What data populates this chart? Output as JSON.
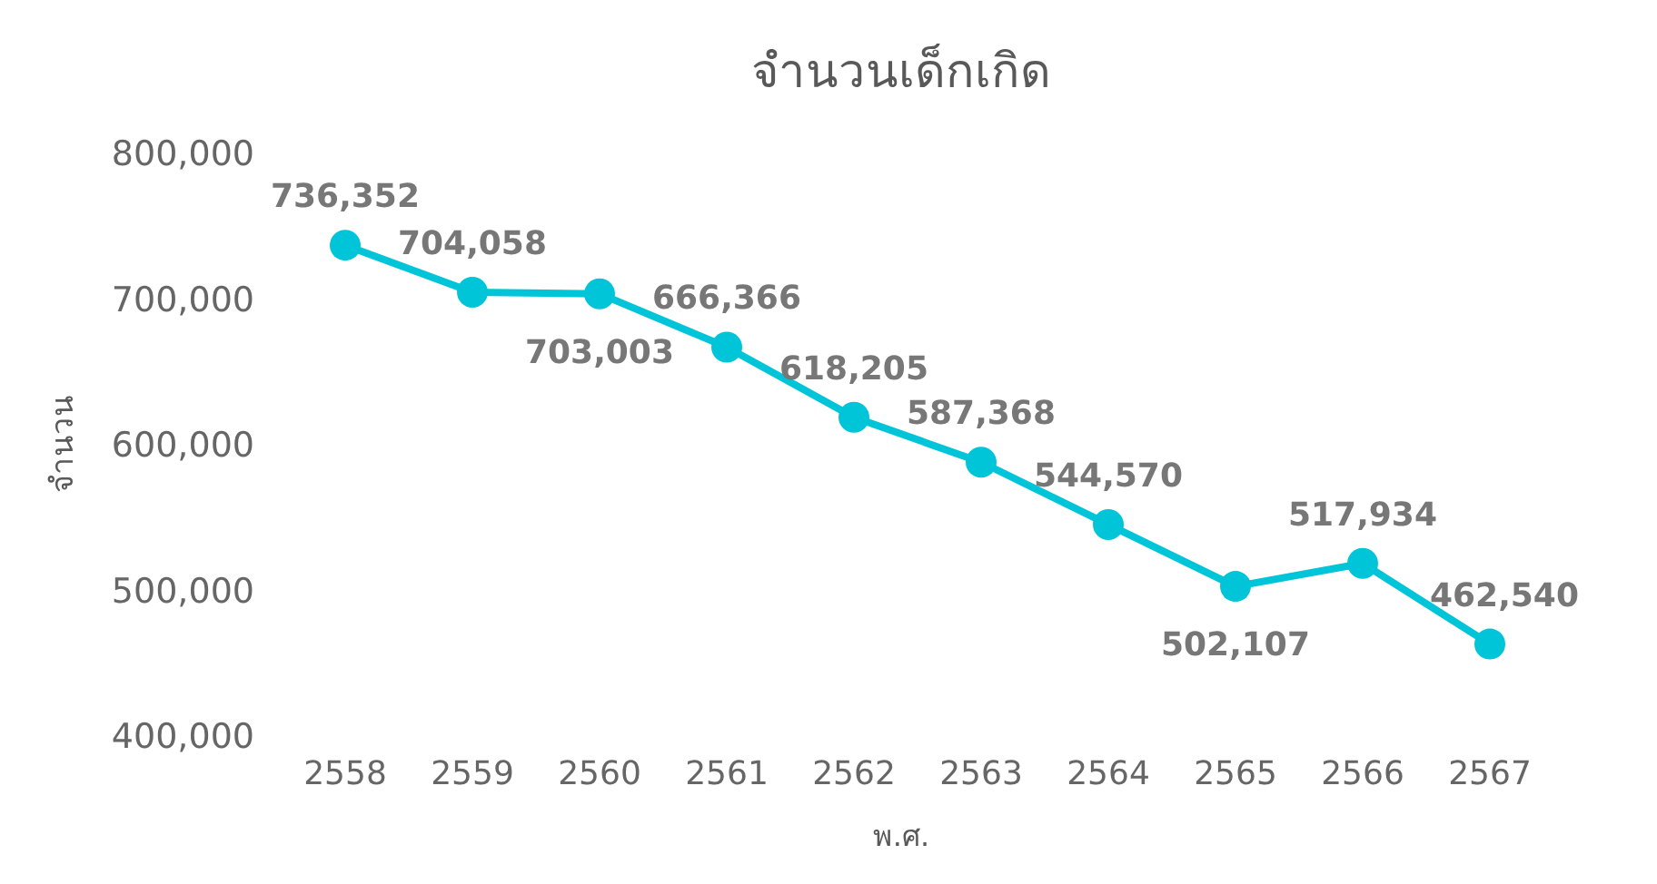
{
  "chart_data": {
    "type": "line",
    "title": "จำนวนเด็กเกิด",
    "xlabel": "พ.ศ.",
    "ylabel": "จำนวน",
    "categories": [
      "2558",
      "2559",
      "2560",
      "2561",
      "2562",
      "2563",
      "2564",
      "2565",
      "2566",
      "2567"
    ],
    "series": [
      {
        "color": "#00c5d9",
        "values": [
          736352,
          704058,
          703003,
          666366,
          618205,
          587368,
          544570,
          502107,
          517934,
          462540
        ],
        "value_labels": [
          "736,352",
          "704,058",
          "703,003",
          "666,366",
          "618,205",
          "587,368",
          "544,570",
          "502,107",
          "517,934",
          "462,540"
        ]
      }
    ],
    "ylim": [
      400000,
      800000
    ],
    "yticks": [
      {
        "value": 400000,
        "label": "400,000"
      },
      {
        "value": 500000,
        "label": "500,000"
      },
      {
        "value": 600000,
        "label": "600,000"
      },
      {
        "value": 700000,
        "label": "700,000"
      },
      {
        "value": 800000,
        "label": "800,000"
      }
    ],
    "marker": "circle",
    "line_style": "solid"
  }
}
